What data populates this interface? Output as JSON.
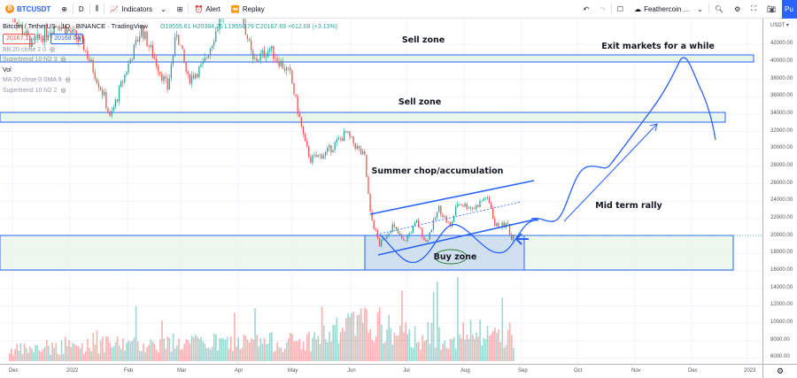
{
  "toolbar": {
    "symbol": "BTCUSDT",
    "interval": "D",
    "indicators": "Indicators",
    "alert": "Alert",
    "replay": "Replay",
    "layout_name": "Feathercoin ...",
    "publish": "Pu"
  },
  "legend": {
    "title": "Bitcoin / TetherUS · 1D · BINANCE · TradingView",
    "ohlc": "O19555.61 H20384.25 L19550.79 C20167.69 +612.08 (+3.13%)",
    "bid": "20167.11",
    "spread": "0.93",
    "ask": "20168.04",
    "indicators": [
      "BB 20 close 2 0",
      "Supertrend 10 hl2 3",
      "Vol",
      "MA 20 close 0 SMA 9",
      "Supertrend 10 hl2 2"
    ]
  },
  "annotations": {
    "sell_zone_1": "Sell zone",
    "sell_zone_2": "Sell zone",
    "exit": "Exit markets for a while",
    "summer": "Summer chop/accumulation",
    "rally": "Mid term rally",
    "buy_zone": "Buy zone"
  },
  "colors": {
    "up": "#26a69a",
    "down": "#ef5350",
    "drawing": "#2962ff",
    "zone_fill": "#e8f5e9",
    "accent": "#2962ff"
  },
  "chart_data": {
    "type": "candlestick",
    "currency": "USDT",
    "price_ticks": [
      "42000.00",
      "40000.00",
      "38000.00",
      "36000.00",
      "34000.00",
      "32000.00",
      "30000.00",
      "28000.00",
      "26000.00",
      "24000.00",
      "22000.00",
      "20000.00",
      "18000.00",
      "16000.00",
      "14000.00",
      "12000.00",
      "10000.00",
      "8000.00",
      "6000.00"
    ],
    "time_ticks": [
      "Dec",
      "2022",
      "Feb",
      "Mar",
      "Apr",
      "May",
      "Jun",
      "Jul",
      "Aug",
      "Sep",
      "Oct",
      "Nov",
      "Dec",
      "2023"
    ],
    "close_keypoints": [
      [
        "2021-12-01",
        46000
      ],
      [
        "2021-12-13",
        42000
      ],
      [
        "2021-12-27",
        44500
      ],
      [
        "2022-01-05",
        43000
      ],
      [
        "2022-01-10",
        41800
      ],
      [
        "2022-01-21",
        36000
      ],
      [
        "2022-01-24",
        33500
      ],
      [
        "2022-02-01",
        38500
      ],
      [
        "2022-02-10",
        43800
      ],
      [
        "2022-02-24",
        37000
      ],
      [
        "2022-03-01",
        43500
      ],
      [
        "2022-03-07",
        38000
      ],
      [
        "2022-03-15",
        39500
      ],
      [
        "2022-03-28",
        47000
      ],
      [
        "2022-04-05",
        45500
      ],
      [
        "2022-04-11",
        40000
      ],
      [
        "2022-04-20",
        41500
      ],
      [
        "2022-05-01",
        38500
      ],
      [
        "2022-05-09",
        30500
      ],
      [
        "2022-05-12",
        28800
      ],
      [
        "2022-05-20",
        29500
      ],
      [
        "2022-05-31",
        31800
      ],
      [
        "2022-06-10",
        29000
      ],
      [
        "2022-06-13",
        22500
      ],
      [
        "2022-06-18",
        19000
      ],
      [
        "2022-06-25",
        21200
      ],
      [
        "2022-07-01",
        19300
      ],
      [
        "2022-07-08",
        21600
      ],
      [
        "2022-07-13",
        19300
      ],
      [
        "2022-07-20",
        23200
      ],
      [
        "2022-07-26",
        21000
      ],
      [
        "2022-07-30",
        23800
      ],
      [
        "2022-08-08",
        23200
      ],
      [
        "2022-08-14",
        24500
      ],
      [
        "2022-08-17",
        23300
      ],
      [
        "2022-08-19",
        21200
      ],
      [
        "2022-08-26",
        21300
      ],
      [
        "2022-08-28",
        19600
      ],
      [
        "2022-08-29",
        20167.69
      ]
    ],
    "volume_level_keypoints": [
      [
        "2021-12-01",
        0.2
      ],
      [
        "2022-01-24",
        0.3
      ],
      [
        "2022-05-09",
        0.35
      ],
      [
        "2022-06-13",
        0.7
      ],
      [
        "2022-07-01",
        0.45
      ],
      [
        "2022-08-29",
        0.5
      ]
    ]
  }
}
